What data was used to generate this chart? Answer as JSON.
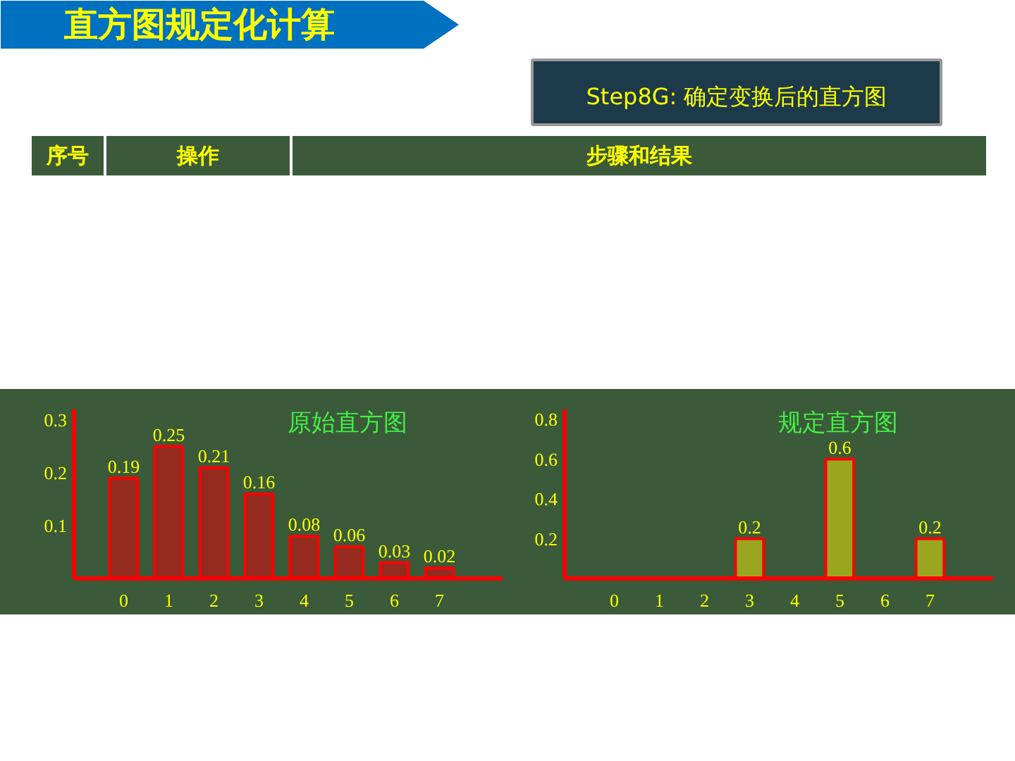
{
  "chart_data": [
    {
      "type": "other",
      "title": "直方图规定化计算",
      "subtitle": "Step8G: 确定变换后的直方图",
      "annotations": [
        "序号",
        "操作",
        "步骤和结果"
      ]
    },
    {
      "type": "bar",
      "title": "原始直方图",
      "categories": [
        "0",
        "1",
        "2",
        "3",
        "4",
        "5",
        "6",
        "7"
      ],
      "values": [
        0.19,
        0.25,
        0.21,
        0.16,
        0.08,
        0.06,
        0.03,
        0.02
      ],
      "color": "#952a1e",
      "ylim": [
        0,
        0.32
      ],
      "yticks": [
        0.1,
        0.2,
        0.3
      ],
      "data_labels": true,
      "grid": false
    },
    {
      "type": "bar",
      "title": "规定直方图",
      "categories": [
        "0",
        "1",
        "2",
        "3",
        "4",
        "5",
        "6",
        "7"
      ],
      "values": [
        0,
        0,
        0,
        0.2,
        0,
        0.6,
        0,
        0.2
      ],
      "value_labels": [
        null,
        null,
        null,
        "0.2",
        null,
        "0.6",
        null,
        "0.2"
      ],
      "color": "#9aa620",
      "ylim": [
        0,
        0.85
      ],
      "yticks": [
        0.2,
        0.4,
        0.6,
        0.8
      ],
      "grid": false
    }
  ]
}
